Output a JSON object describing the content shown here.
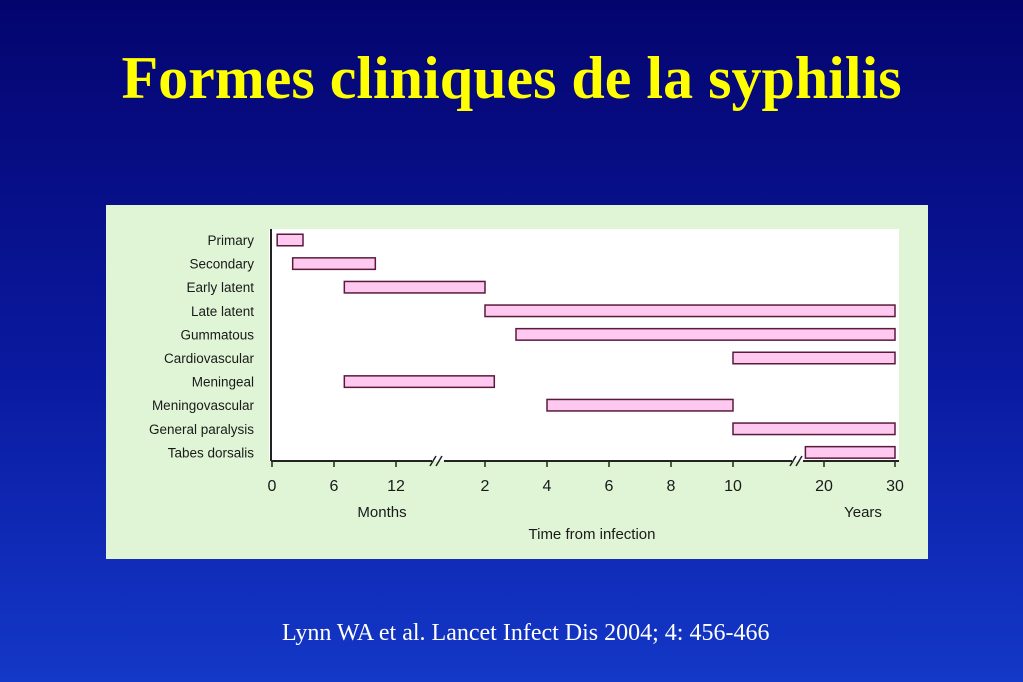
{
  "slide": {
    "title": "Formes cliniques de la syphilis",
    "citation": "Lynn WA et al. Lancet Infect Dis 2004; 4: 456-466"
  },
  "colors": {
    "background_top": "#04046e",
    "background_bottom": "#1438c8",
    "title": "#ffff00",
    "citation": "#ffffff",
    "figure_background": "#dff5d6",
    "plot_background": "#ffffff",
    "bar_fill": "#ffc8f0",
    "bar_stroke": "#5a1a3a"
  },
  "chart_data": {
    "type": "bar",
    "orientation": "horizontal",
    "subtype": "range-timeline",
    "xlabel": "Time from infection",
    "axis_segments": [
      {
        "unit_label": "Months",
        "ticks": [
          0,
          6,
          12
        ]
      },
      {
        "unit_label": "",
        "ticks": [
          2,
          4,
          6,
          8,
          10
        ]
      },
      {
        "unit_label": "Years",
        "ticks": [
          20,
          30
        ]
      }
    ],
    "x_tick_labels": [
      "0",
      "6",
      "12",
      "2",
      "4",
      "6",
      "8",
      "10",
      "20",
      "30"
    ],
    "axis_breaks": [
      "between 12 months and 2 years",
      "between 10 years and 20 years"
    ],
    "categories": [
      "Primary",
      "Secondary",
      "Early latent",
      "Late latent",
      "Gummatous",
      "Cardiovascular",
      "Meningeal",
      "Meningovascular",
      "General paralysis",
      "Tabes dorsalis"
    ],
    "ranges": [
      {
        "label": "Primary",
        "start": "0.5 months",
        "end": "3 months"
      },
      {
        "label": "Secondary",
        "start": "2 months",
        "end": "10 months"
      },
      {
        "label": "Early latent",
        "start": "7 months",
        "end": "2 years"
      },
      {
        "label": "Late latent",
        "start": "2 years",
        "end": "30 years"
      },
      {
        "label": "Gummatous",
        "start": "3 years",
        "end": "30 years"
      },
      {
        "label": "Cardiovascular",
        "start": "10 years",
        "end": "30 years"
      },
      {
        "label": "Meningeal",
        "start": "7 months",
        "end": "2.3 years"
      },
      {
        "label": "Meningovascular",
        "start": "4 years",
        "end": "10 years"
      },
      {
        "label": "General paralysis",
        "start": "10 years",
        "end": "30 years"
      },
      {
        "label": "Tabes dorsalis",
        "start": "18 years",
        "end": "30 years"
      }
    ],
    "grid": false,
    "legend": "none"
  }
}
